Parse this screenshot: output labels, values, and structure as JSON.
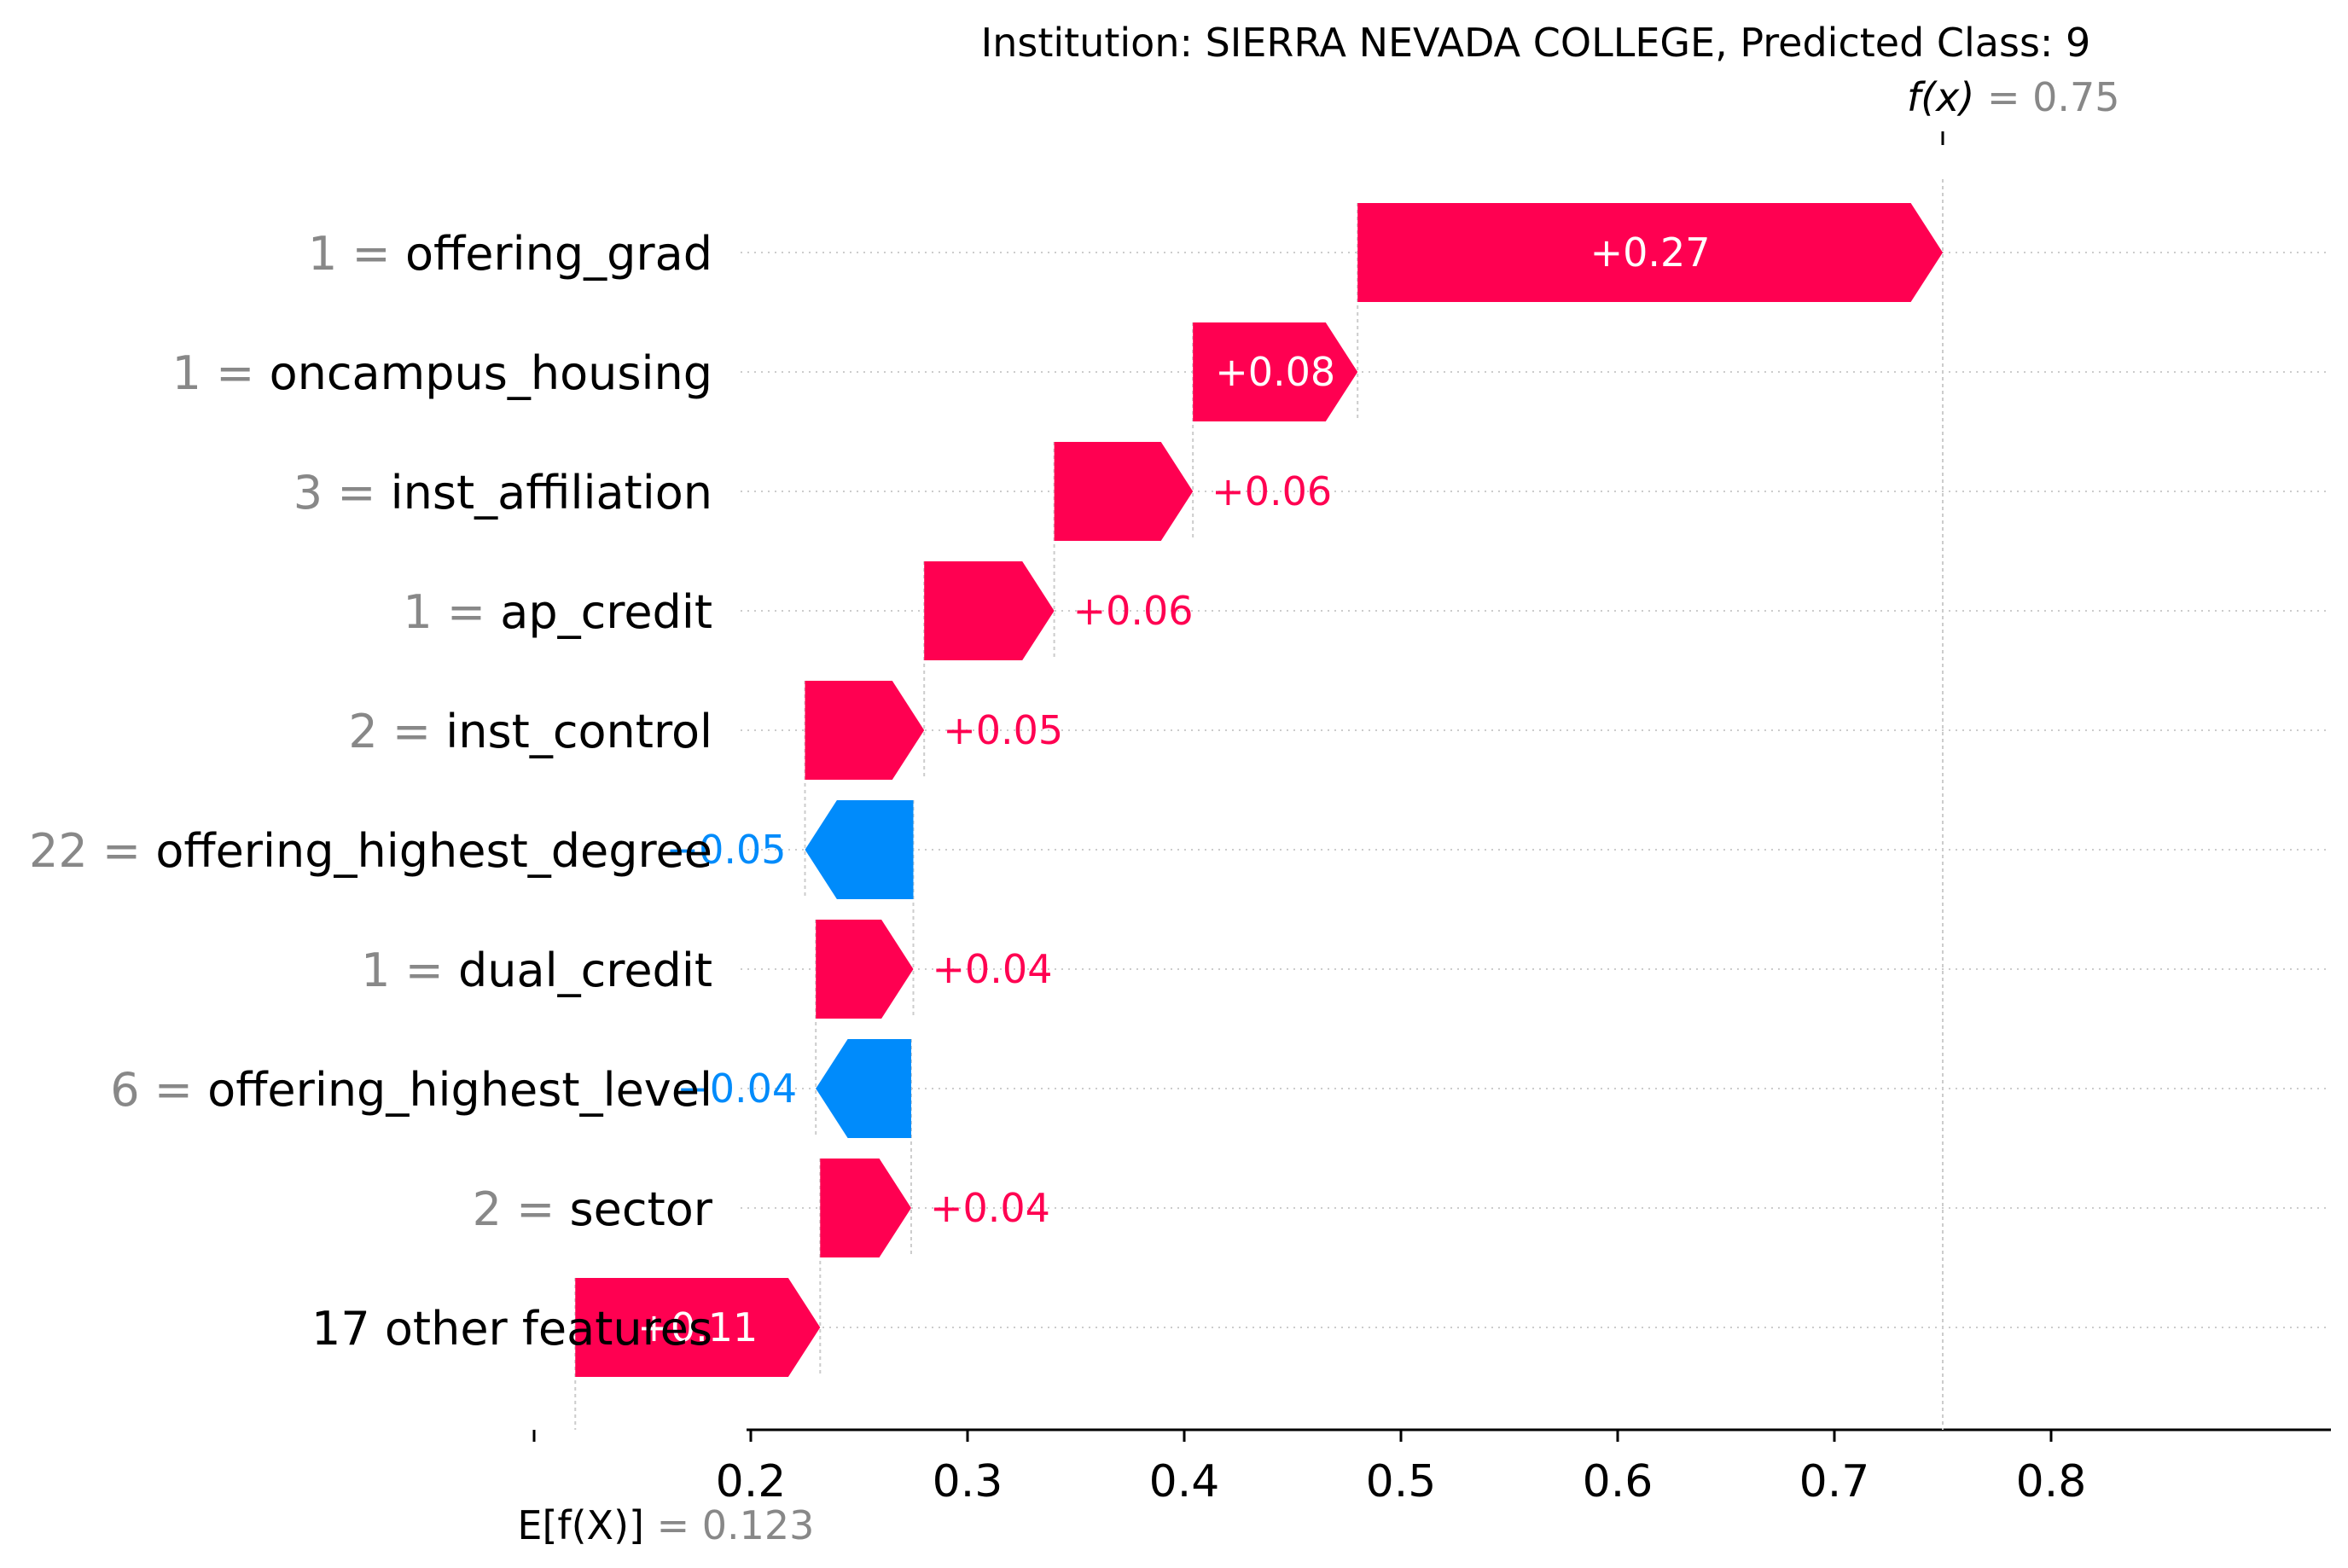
{
  "chart_data": {
    "type": "waterfall",
    "title": "Institution: SIERRA NEVADA COLLEGE, Predicted Class: 9",
    "base_value": 0.123,
    "base_label": "E[f(X)]",
    "base_value_text": "= 0.123",
    "output_value": 0.75,
    "output_label": "f(x)",
    "output_value_text": "= 0.75",
    "xlim": [
      0.1,
      0.85
    ],
    "x_ticks": [
      0.1,
      0.2,
      0.3,
      0.4,
      0.5,
      0.6,
      0.7,
      0.8
    ],
    "x_tick_labels": [
      "",
      "0.2",
      "0.3",
      "0.4",
      "0.5",
      "0.6",
      "0.7",
      "0.8"
    ],
    "features": [
      {
        "value": "1 =",
        "name": "offering_grad",
        "contribution": 0.27,
        "label": "+0.27"
      },
      {
        "value": "1 =",
        "name": "oncampus_housing",
        "contribution": 0.076,
        "label": "+0.08"
      },
      {
        "value": "3 =",
        "name": "inst_affiliation",
        "contribution": 0.064,
        "label": "+0.06"
      },
      {
        "value": "1 =",
        "name": "ap_credit",
        "contribution": 0.06,
        "label": "+0.06"
      },
      {
        "value": "2 =",
        "name": "inst_control",
        "contribution": 0.055,
        "label": "+0.05"
      },
      {
        "value": "22 =",
        "name": "offering_highest_degree",
        "contribution": -0.05,
        "label": "−0.05"
      },
      {
        "value": "1 =",
        "name": "dual_credit",
        "contribution": 0.045,
        "label": "+0.04"
      },
      {
        "value": "6 =",
        "name": "offering_highest_level",
        "contribution": -0.044,
        "label": "−0.04"
      },
      {
        "value": "2 =",
        "name": "sector",
        "contribution": 0.042,
        "label": "+0.04"
      },
      {
        "value": "",
        "name": "17 other features",
        "contribution": 0.113,
        "label": "+0.11"
      }
    ],
    "colors": {
      "positive": "#ff0051",
      "negative": "#008bfb",
      "axis": "#000000",
      "grid": "#cccccc",
      "dim_text": "#888888"
    },
    "grid": true
  }
}
